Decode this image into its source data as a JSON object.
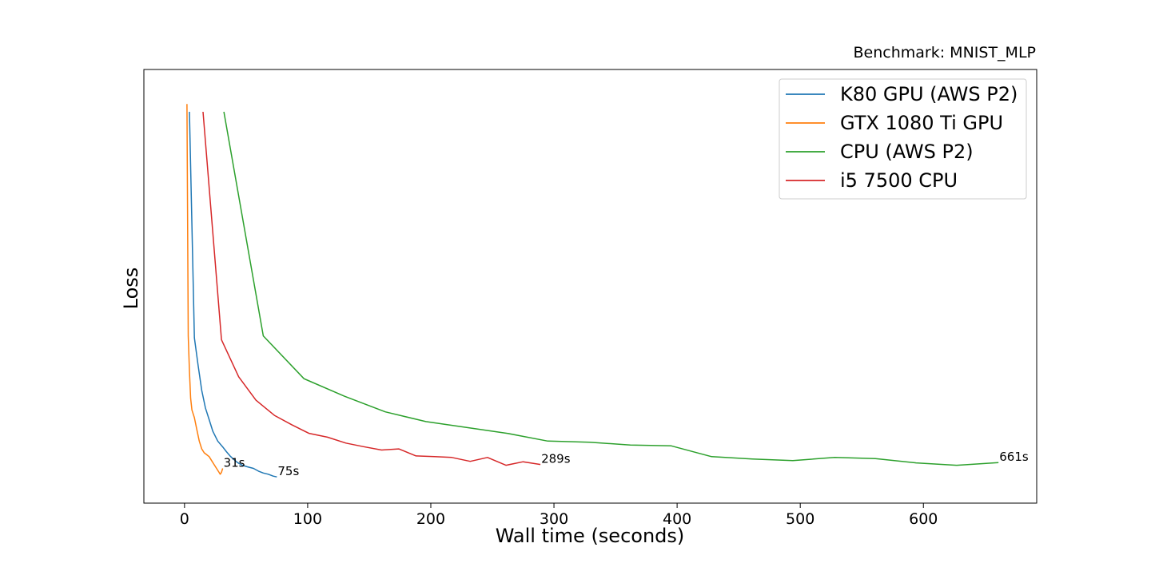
{
  "chart_data": {
    "type": "line",
    "title": "Benchmark: MNIST_MLP",
    "xlabel": "Wall time (seconds)",
    "ylabel": "Loss",
    "xlim": [
      -33,
      692
    ],
    "ylim": [
      0,
      1
    ],
    "x_ticks": [
      0,
      100,
      200,
      300,
      400,
      500,
      600
    ],
    "y_ticks": [],
    "grid": false,
    "legend_position": "top-right",
    "series": [
      {
        "name": "K80 GPU (AWS P2)",
        "color": "#1f77b4",
        "end_label": "75s",
        "x": [
          4,
          8,
          11,
          14,
          17,
          20,
          23,
          27,
          31,
          34,
          37,
          40,
          43,
          47,
          51,
          56,
          60,
          64,
          68,
          72,
          75
        ],
        "y": [
          0.955,
          0.375,
          0.305,
          0.24,
          0.195,
          0.165,
          0.135,
          0.11,
          0.095,
          0.083,
          0.072,
          0.063,
          0.055,
          0.048,
          0.044,
          0.04,
          0.033,
          0.028,
          0.025,
          0.02,
          0.018
        ]
      },
      {
        "name": "GTX 1080 Ti GPU",
        "color": "#ff7f0e",
        "end_label": "31s",
        "x": [
          2,
          3,
          4,
          5,
          6,
          8,
          10,
          12,
          14,
          16,
          18,
          20,
          22,
          24,
          26,
          28,
          29,
          30,
          31
        ],
        "y": [
          0.975,
          0.38,
          0.29,
          0.22,
          0.19,
          0.17,
          0.14,
          0.11,
          0.09,
          0.08,
          0.075,
          0.07,
          0.06,
          0.05,
          0.04,
          0.03,
          0.025,
          0.03,
          0.04
        ]
      },
      {
        "name": "CPU (AWS P2)",
        "color": "#2ca02c",
        "end_label": "661s",
        "x": [
          32,
          64,
          97,
          130,
          163,
          196,
          229,
          262,
          295,
          329,
          362,
          395,
          428,
          461,
          494,
          528,
          561,
          594,
          627,
          661
        ],
        "y": [
          0.955,
          0.38,
          0.27,
          0.225,
          0.185,
          0.16,
          0.145,
          0.13,
          0.11,
          0.107,
          0.1,
          0.098,
          0.07,
          0.064,
          0.06,
          0.068,
          0.065,
          0.054,
          0.048,
          0.055
        ]
      },
      {
        "name": "i5 7500 CPU",
        "color": "#d62728",
        "end_label": "289s",
        "x": [
          15,
          30,
          44,
          58,
          73,
          87,
          101,
          116,
          131,
          145,
          160,
          174,
          188,
          203,
          217,
          232,
          246,
          261,
          275,
          289
        ],
        "y": [
          0.955,
          0.37,
          0.275,
          0.215,
          0.176,
          0.152,
          0.13,
          0.12,
          0.105,
          0.096,
          0.087,
          0.09,
          0.072,
          0.07,
          0.068,
          0.058,
          0.068,
          0.048,
          0.057,
          0.05
        ]
      }
    ]
  }
}
